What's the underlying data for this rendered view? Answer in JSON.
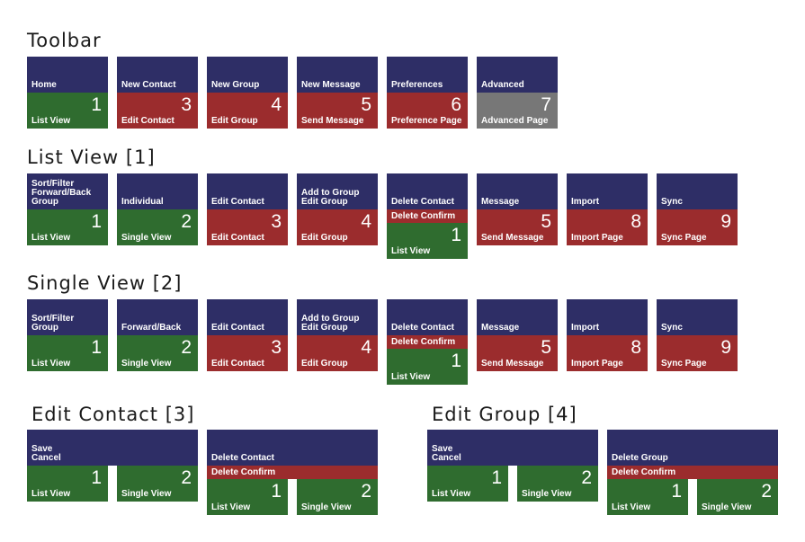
{
  "toolbar": {
    "title": "Toolbar",
    "tiles": [
      {
        "label": "Home",
        "number": "1",
        "dest": "List View",
        "color": "green"
      },
      {
        "label": "New Contact",
        "number": "3",
        "dest": "Edit Contact",
        "color": "red"
      },
      {
        "label": "New Group",
        "number": "4",
        "dest": "Edit Group",
        "color": "red"
      },
      {
        "label": "New Message",
        "number": "5",
        "dest": "Send Message",
        "color": "red"
      },
      {
        "label": "Preferences",
        "number": "6",
        "dest": "Preference Page",
        "color": "red"
      },
      {
        "label": "Advanced",
        "number": "7",
        "dest": "Advanced Page",
        "color": "gray"
      }
    ]
  },
  "list_view": {
    "title": "List View [1]",
    "tiles": [
      {
        "label": "Sort/Filter\nForward/Back\nGroup",
        "number": "1",
        "dest": "List View",
        "color": "green"
      },
      {
        "label": "Individual",
        "number": "2",
        "dest": "Single View",
        "color": "green"
      },
      {
        "label": "Edit Contact",
        "number": "3",
        "dest": "Edit Contact",
        "color": "red"
      },
      {
        "label": "Add to Group\nEdit Group",
        "number": "4",
        "dest": "Edit Group",
        "color": "red"
      },
      {
        "label": "Delete Contact",
        "confirm": "Delete Confirm",
        "number": "1",
        "dest": "List View",
        "color": "green"
      },
      {
        "label": "Message",
        "number": "5",
        "dest": "Send Message",
        "color": "red"
      },
      {
        "label": "Import",
        "number": "8",
        "dest": "Import Page",
        "color": "red"
      },
      {
        "label": "Sync",
        "number": "9",
        "dest": "Sync Page",
        "color": "red"
      }
    ]
  },
  "single_view": {
    "title": "Single View [2]",
    "tiles": [
      {
        "label": "Sort/Filter\nGroup",
        "number": "1",
        "dest": "List View",
        "color": "green"
      },
      {
        "label": "Forward/Back",
        "number": "2",
        "dest": "Single View",
        "color": "green"
      },
      {
        "label": "Edit Contact",
        "number": "3",
        "dest": "Edit Contact",
        "color": "red"
      },
      {
        "label": "Add to Group\nEdit Group",
        "number": "4",
        "dest": "Edit Group",
        "color": "red"
      },
      {
        "label": "Delete Contact",
        "confirm": "Delete Confirm",
        "number": "1",
        "dest": "List View",
        "color": "green"
      },
      {
        "label": "Message",
        "number": "5",
        "dest": "Send Message",
        "color": "red"
      },
      {
        "label": "Import",
        "number": "8",
        "dest": "Import Page",
        "color": "red"
      },
      {
        "label": "Sync",
        "number": "9",
        "dest": "Sync Page",
        "color": "red"
      }
    ]
  },
  "edit_contact": {
    "title": "Edit Contact [3]",
    "save_label": "Save\nCancel",
    "save_targets": [
      {
        "number": "1",
        "dest": "List View"
      },
      {
        "number": "2",
        "dest": "Single View"
      }
    ],
    "delete_label": "Delete Contact",
    "delete_confirm": "Delete Confirm",
    "delete_targets": [
      {
        "number": "1",
        "dest": "List View"
      },
      {
        "number": "2",
        "dest": "Single View"
      }
    ]
  },
  "edit_group": {
    "title": "Edit Group [4]",
    "save_label": "Save\nCancel",
    "save_targets": [
      {
        "number": "1",
        "dest": "List View"
      },
      {
        "number": "2",
        "dest": "Single View"
      }
    ],
    "delete_label": "Delete Group",
    "delete_confirm": "Delete Confirm",
    "delete_targets": [
      {
        "number": "1",
        "dest": "List View"
      },
      {
        "number": "2",
        "dest": "Single View"
      }
    ]
  }
}
